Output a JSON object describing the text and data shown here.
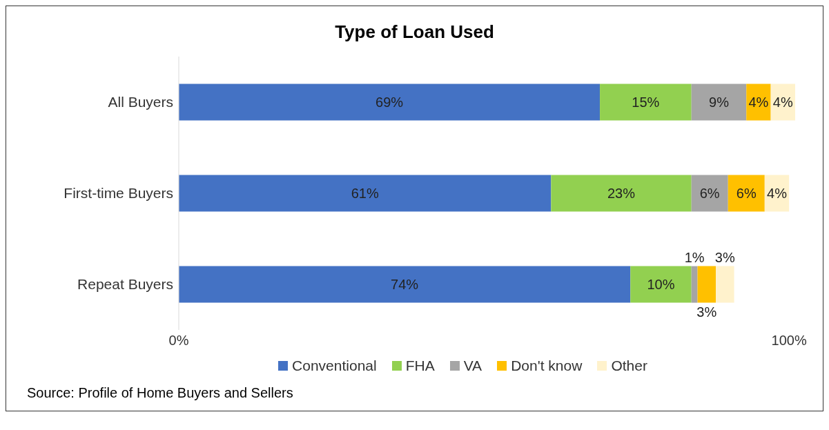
{
  "chart_data": {
    "type": "bar",
    "orientation": "horizontal",
    "stacked": true,
    "title": "Type of Loan Used",
    "categories": [
      "All Buyers",
      "First-time Buyers",
      "Repeat Buyers"
    ],
    "series": [
      {
        "name": "Conventional",
        "color": "#4472c4",
        "values": [
          69,
          61,
          74
        ],
        "value_labels": [
          "69%",
          "61%",
          "74%"
        ]
      },
      {
        "name": "FHA",
        "color": "#92d050",
        "values": [
          15,
          23,
          10
        ],
        "value_labels": [
          "15%",
          "23%",
          "10%"
        ]
      },
      {
        "name": "VA",
        "color": "#a5a5a5",
        "values": [
          9,
          6,
          1
        ],
        "value_labels": [
          "9%",
          "6%",
          "1%"
        ]
      },
      {
        "name": "Don't know",
        "color": "#ffc000",
        "values": [
          4,
          6,
          3
        ],
        "value_labels": [
          "4%",
          "6%",
          "3%"
        ]
      },
      {
        "name": "Other",
        "color": "#fff2cc",
        "values": [
          4,
          4,
          3
        ],
        "value_labels": [
          "4%",
          "4%",
          "3%"
        ]
      }
    ],
    "xlim": [
      0,
      101
    ],
    "xticks": [
      {
        "value": 0,
        "label": "0%"
      },
      {
        "value": 100,
        "label": "100%"
      }
    ],
    "grid": false,
    "legend": "bottom",
    "annotations": [
      "Source: Profile of Home Buyers and Sellers"
    ]
  }
}
